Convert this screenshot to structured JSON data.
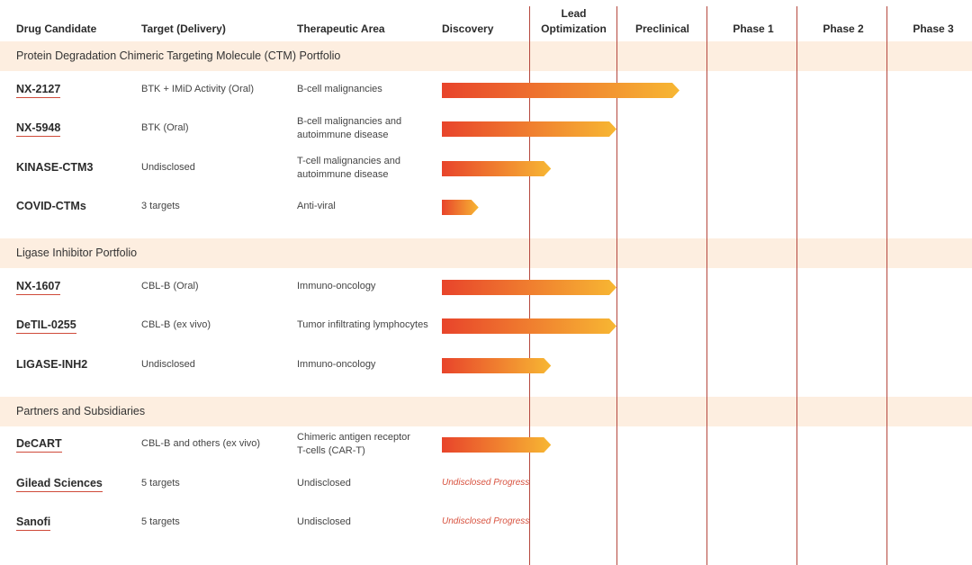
{
  "headers": {
    "drug": "Drug Candidate",
    "target": "Target (Delivery)",
    "area": "Therapeutic Area",
    "discovery": "Discovery",
    "lead_line1": "Lead",
    "lead_line2": "Optimization",
    "preclinical": "Preclinical",
    "phase1": "Phase 1",
    "phase2": "Phase 2",
    "phase3": "Phase 3"
  },
  "colors": {
    "band": "#fdeee0",
    "bar_start": "#e8442b",
    "bar_end": "#f7b733",
    "divider": "#b5473d",
    "underline": "#cf4a3a",
    "undisclosed_text": "#d8523f"
  },
  "chart_data": {
    "type": "bar",
    "orientation": "horizontal",
    "stages": [
      "Discovery",
      "Lead Optimization",
      "Preclinical",
      "Phase 1",
      "Phase 2",
      "Phase 3"
    ],
    "progress_unit": "stages completed (0-6)",
    "groups": [
      {
        "name": "Protein Degradation Chimeric Targeting Molecule (CTM) Portfolio",
        "rows": [
          {
            "drug": "NX-2127",
            "target": "BTK + IMiD Activity (Oral)",
            "area": [
              "B-cell malignancies"
            ],
            "progress": 2.7,
            "underlined": true
          },
          {
            "drug": "NX-5948",
            "target": "BTK (Oral)",
            "area": [
              "B-cell malignancies and",
              "autoimmune disease"
            ],
            "progress": 2.0,
            "underlined": true
          },
          {
            "drug": "KINASE-CTM3",
            "target": "Undisclosed",
            "area": [
              "T-cell malignancies and",
              "autoimmune disease"
            ],
            "progress": 1.25,
            "underlined": false
          },
          {
            "drug": "COVID-CTMs",
            "target": "3 targets",
            "area": [
              "Anti-viral"
            ],
            "progress": 0.42,
            "underlined": false
          }
        ]
      },
      {
        "name": "Ligase Inhibitor Portfolio",
        "rows": [
          {
            "drug": "NX-1607",
            "target": "CBL-B (Oral)",
            "area": [
              "Immuno-oncology"
            ],
            "progress": 2.0,
            "underlined": true
          },
          {
            "drug": "DeTIL-0255",
            "target": "CBL-B (ex vivo)",
            "area": [
              "Tumor infiltrating lymphocytes"
            ],
            "progress": 2.0,
            "underlined": true
          },
          {
            "drug": "LIGASE-INH2",
            "target": "Undisclosed",
            "area": [
              "Immuno-oncology"
            ],
            "progress": 1.25,
            "underlined": false
          }
        ]
      },
      {
        "name": "Partners and Subsidiaries",
        "rows": [
          {
            "drug": "DeCART",
            "target": "CBL-B and others (ex vivo)",
            "area": [
              "Chimeric antigen receptor",
              "T-cells (CAR-T)"
            ],
            "progress": 1.25,
            "underlined": true
          },
          {
            "drug": "Gilead Sciences",
            "target": "5 targets",
            "area": [
              "Undisclosed"
            ],
            "progress": null,
            "status": "Undisclosed Progress",
            "underlined": true
          },
          {
            "drug": "Sanofi",
            "target": "5 targets",
            "area": [
              "Undisclosed"
            ],
            "progress": null,
            "status": "Undisclosed Progress",
            "underlined": true
          }
        ]
      }
    ]
  }
}
